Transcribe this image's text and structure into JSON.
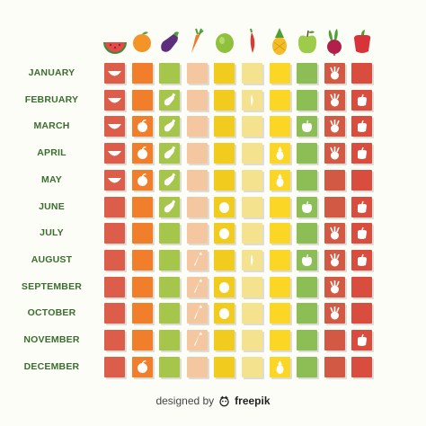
{
  "months": [
    "JANUARY",
    "FEBRUARY",
    "MARCH",
    "APRIL",
    "MAY",
    "JUNE",
    "JULY",
    "AUGUST",
    "SEPTEMBER",
    "OCTOBER",
    "NOVEMBER",
    "DECEMBER"
  ],
  "produce": [
    {
      "icon": "watermelon-icon",
      "color": "#db5d4a"
    },
    {
      "icon": "orange-icon",
      "color": "#f07e2a"
    },
    {
      "icon": "eggplant-icon",
      "color": "#a5c64a"
    },
    {
      "icon": "carrot-icon",
      "color": "#f5c7a0"
    },
    {
      "icon": "lime-icon",
      "color": "#f1cc1e"
    },
    {
      "icon": "chili-icon",
      "color": "#f5e28e"
    },
    {
      "icon": "pineapple-icon",
      "color": "#fcd624"
    },
    {
      "icon": "apple-icon",
      "color": "#8dbd55"
    },
    {
      "icon": "beet-icon",
      "color": "#d25a44"
    },
    {
      "icon": "pepper-icon",
      "color": "#d94d3f"
    }
  ],
  "in_season": [
    [
      "watermelon-icon",
      "",
      "",
      "",
      "",
      "",
      "",
      "",
      "beet-icon",
      ""
    ],
    [
      "watermelon-icon",
      "",
      "eggplant-icon",
      "",
      "",
      "chili-icon",
      "",
      "",
      "beet-icon",
      "pepper-icon"
    ],
    [
      "watermelon-icon",
      "orange-icon",
      "eggplant-icon",
      "",
      "",
      "",
      "",
      "apple-icon",
      "beet-icon",
      "pepper-icon"
    ],
    [
      "watermelon-icon",
      "orange-icon",
      "eggplant-icon",
      "",
      "",
      "",
      "pineapple-icon",
      "",
      "beet-icon",
      "pepper-icon"
    ],
    [
      "watermelon-icon",
      "orange-icon",
      "eggplant-icon",
      "",
      "",
      "",
      "pineapple-icon",
      "",
      "",
      ""
    ],
    [
      "",
      "",
      "eggplant-icon",
      "",
      "lime-icon",
      "",
      "",
      "apple-icon",
      "",
      "pepper-icon"
    ],
    [
      "",
      "",
      "",
      "",
      "lime-icon",
      "",
      "",
      "",
      "beet-icon",
      "pepper-icon"
    ],
    [
      "",
      "",
      "",
      "carrot-icon",
      "",
      "chili-icon",
      "",
      "apple-icon",
      "beet-icon",
      "pepper-icon"
    ],
    [
      "",
      "",
      "",
      "carrot-icon",
      "lime-icon",
      "",
      "",
      "",
      "beet-icon",
      ""
    ],
    [
      "",
      "",
      "",
      "carrot-icon",
      "lime-icon",
      "",
      "",
      "",
      "beet-icon",
      ""
    ],
    [
      "",
      "",
      "",
      "carrot-icon",
      "",
      "",
      "",
      "",
      "",
      "pepper-icon"
    ],
    [
      "",
      "orange-icon",
      "",
      "",
      "",
      "",
      "pineapple-icon",
      "",
      "",
      ""
    ]
  ],
  "footer": {
    "prefix": "designed by",
    "brand": "freepik"
  }
}
